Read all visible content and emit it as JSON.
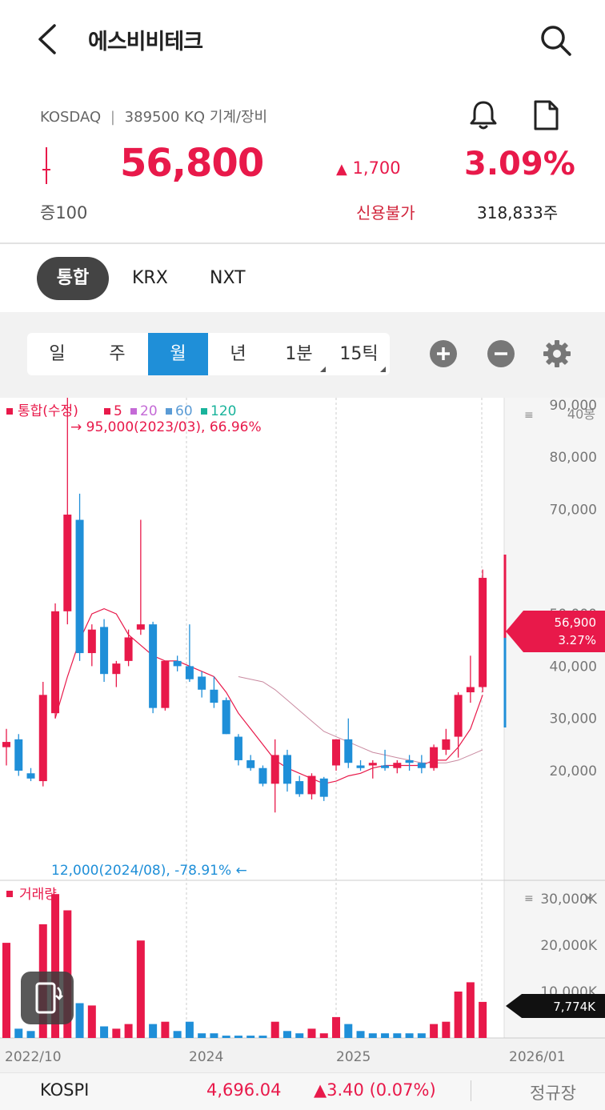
{
  "header": {
    "title": "에스비비테크",
    "back_icon": "chevron-left-icon",
    "search_icon": "search-icon"
  },
  "stock": {
    "market": "KOSDAQ",
    "separator": "|",
    "code": "389500 KQ",
    "sector": "기계/장비",
    "price": "56,800",
    "change_arrow": "▲",
    "change": "1,700",
    "rate": "3.09%",
    "lot": "증100",
    "credit": "신용불가",
    "volume": "318,833주"
  },
  "exchange_tabs": [
    "통합",
    "KRX",
    "NXT"
  ],
  "period_tabs": [
    "일",
    "주",
    "월",
    "년",
    "1분",
    "15틱"
  ],
  "active_period": "월",
  "chart_data": {
    "type": "candlestick",
    "legend": {
      "label": "통합(수정)",
      "ma": [
        "5",
        "20",
        "60",
        "120"
      ],
      "ma_colors": [
        "#e8194a",
        "#c46ad6",
        "#5a9bd5",
        "#19b39b"
      ]
    },
    "count_label": "40봉",
    "y_ticks": [
      "90,000",
      "80,000",
      "70,000",
      "50,000",
      "40,000",
      "30,000",
      "20,000"
    ],
    "ylim": [
      15000,
      97000
    ],
    "x_labels": [
      "2022/10",
      "2024",
      "2025",
      "2026/01"
    ],
    "max_annotation": "→ 95,000(2023/03), 66.96%",
    "min_annotation": "12,000(2024/08), -78.91% ←",
    "current_price": "56,900",
    "current_rate": "3.27%",
    "candles": [
      {
        "o": 24500,
        "h": 28000,
        "l": 21000,
        "c": 25500
      },
      {
        "o": 26000,
        "h": 27000,
        "l": 19000,
        "c": 20000
      },
      {
        "o": 19500,
        "h": 20500,
        "l": 18000,
        "c": 18500
      },
      {
        "o": 18000,
        "h": 37000,
        "l": 17000,
        "c": 34500
      },
      {
        "o": 31000,
        "h": 52000,
        "l": 30000,
        "c": 50500
      },
      {
        "o": 50500,
        "h": 95000,
        "l": 48000,
        "c": 69000
      },
      {
        "o": 68000,
        "h": 73000,
        "l": 41000,
        "c": 42500
      },
      {
        "o": 42500,
        "h": 48000,
        "l": 40000,
        "c": 47000
      },
      {
        "o": 47500,
        "h": 49000,
        "l": 37000,
        "c": 38500
      },
      {
        "o": 38500,
        "h": 41000,
        "l": 36000,
        "c": 40500
      },
      {
        "o": 41000,
        "h": 47000,
        "l": 40000,
        "c": 45500
      },
      {
        "o": 47000,
        "h": 68000,
        "l": 46000,
        "c": 48000
      },
      {
        "o": 48000,
        "h": 48500,
        "l": 31000,
        "c": 32000
      },
      {
        "o": 32000,
        "h": 41000,
        "l": 31500,
        "c": 41000
      },
      {
        "o": 41000,
        "h": 42000,
        "l": 39000,
        "c": 40000
      },
      {
        "o": 40000,
        "h": 48000,
        "l": 37000,
        "c": 37500
      },
      {
        "o": 38000,
        "h": 39000,
        "l": 34000,
        "c": 35500
      },
      {
        "o": 35500,
        "h": 38000,
        "l": 32000,
        "c": 33000
      },
      {
        "o": 33500,
        "h": 34000,
        "l": 27000,
        "c": 27000
      },
      {
        "o": 26500,
        "h": 27000,
        "l": 21000,
        "c": 22000
      },
      {
        "o": 22000,
        "h": 23000,
        "l": 20000,
        "c": 20500
      },
      {
        "o": 20500,
        "h": 21000,
        "l": 17000,
        "c": 17500
      },
      {
        "o": 17500,
        "h": 26000,
        "l": 12000,
        "c": 23000
      },
      {
        "o": 23000,
        "h": 24000,
        "l": 16000,
        "c": 17500
      },
      {
        "o": 18000,
        "h": 19000,
        "l": 15000,
        "c": 15500
      },
      {
        "o": 15500,
        "h": 19500,
        "l": 14500,
        "c": 19000
      },
      {
        "o": 18500,
        "h": 18800,
        "l": 14200,
        "c": 15000
      },
      {
        "o": 21000,
        "h": 26000,
        "l": 20000,
        "c": 26000
      },
      {
        "o": 26000,
        "h": 30000,
        "l": 20500,
        "c": 21500
      },
      {
        "o": 21000,
        "h": 22000,
        "l": 20000,
        "c": 20500
      },
      {
        "o": 21000,
        "h": 22000,
        "l": 18500,
        "c": 21500
      },
      {
        "o": 21000,
        "h": 24000,
        "l": 20000,
        "c": 20500
      },
      {
        "o": 20500,
        "h": 22000,
        "l": 19500,
        "c": 21500
      },
      {
        "o": 22000,
        "h": 23000,
        "l": 20000,
        "c": 21500
      },
      {
        "o": 21500,
        "h": 23000,
        "l": 19500,
        "c": 20500
      },
      {
        "o": 20500,
        "h": 25000,
        "l": 20000,
        "c": 24500
      },
      {
        "o": 24000,
        "h": 28000,
        "l": 23000,
        "c": 26000
      },
      {
        "o": 26500,
        "h": 35000,
        "l": 22500,
        "c": 34500
      },
      {
        "o": 35000,
        "h": 42000,
        "l": 33000,
        "c": 36000
      },
      {
        "o": 36000,
        "h": 58500,
        "l": 35000,
        "c": 56900
      }
    ],
    "ma5": [
      null,
      null,
      null,
      null,
      30000,
      38000,
      45000,
      50000,
      51000,
      50000,
      46000,
      44000,
      42000,
      41000,
      41000,
      40000,
      39000,
      38000,
      35000,
      31000,
      28000,
      25000,
      22000,
      20500,
      19500,
      18500,
      17500,
      18000,
      19000,
      19500,
      20500,
      21000,
      21000,
      21000,
      21000,
      22000,
      22000,
      24500,
      28000,
      34500
    ],
    "ma20": [
      null,
      null,
      null,
      null,
      null,
      null,
      null,
      null,
      null,
      null,
      null,
      null,
      null,
      null,
      null,
      null,
      null,
      null,
      null,
      38000,
      37500,
      37000,
      35500,
      33500,
      31500,
      29500,
      27500,
      26500,
      25500,
      24500,
      23500,
      23000,
      22500,
      22000,
      21500,
      21500,
      21500,
      22000,
      23000,
      24000
    ],
    "volume_ticks": [
      "30,000K",
      "20,000K",
      "10,000K"
    ],
    "volume_current": "7,774K",
    "volume_label": "거래량",
    "volumes": [
      20500,
      2000,
      1500,
      24500,
      31000,
      27500,
      7500,
      7000,
      2500,
      2000,
      3000,
      21000,
      3000,
      3500,
      1500,
      3500,
      1000,
      1000,
      500,
      500,
      500,
      500,
      3500,
      1500,
      1000,
      2000,
      1000,
      4500,
      3000,
      1500,
      1000,
      1000,
      1000,
      1000,
      1000,
      3000,
      3500,
      10000,
      12000,
      7774
    ],
    "volume_up": [
      true,
      false,
      false,
      true,
      true,
      true,
      false,
      true,
      false,
      true,
      true,
      true,
      false,
      true,
      false,
      false,
      false,
      false,
      false,
      false,
      false,
      false,
      true,
      false,
      false,
      true,
      true,
      true,
      false,
      false,
      false,
      false,
      false,
      false,
      false,
      true,
      true,
      true,
      true,
      true
    ]
  },
  "bottom_bar": {
    "index_name": "KOSPI",
    "index_value": "4,696.04",
    "index_change": "▲3.40 (0.07%)",
    "session": "정규장"
  }
}
